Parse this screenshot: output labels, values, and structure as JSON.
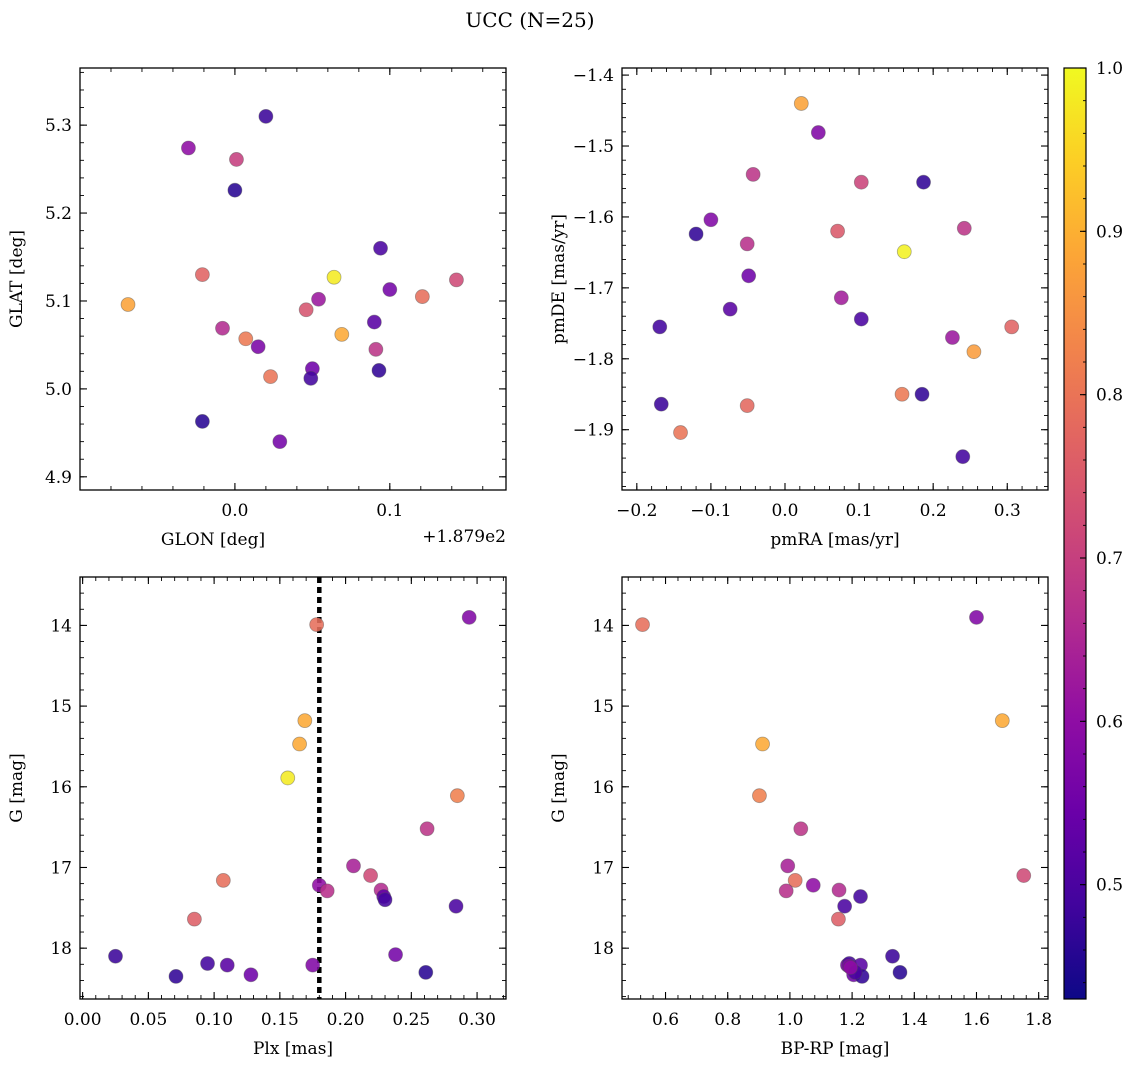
{
  "figure": {
    "title": "UCC (N=25)"
  },
  "chart_data": [
    {
      "type": "scatter",
      "id": "sky",
      "xlabel": "GLON [deg]",
      "ylabel": "GLAT [deg]",
      "offset_text": "+1.879e2",
      "xlim": [
        -0.1,
        0.175
      ],
      "ylim": [
        4.885,
        5.365
      ],
      "xticks": [
        0.0,
        0.1
      ],
      "xtick_labels": [
        "0.0",
        "0.1"
      ],
      "yticks": [
        4.9,
        5.0,
        5.1,
        5.2,
        5.3
      ],
      "ytick_labels": [
        "4.9",
        "5.0",
        "5.1",
        "5.2",
        "5.3"
      ],
      "points": [
        {
          "x": 0.02,
          "y": 5.31,
          "c": 0.48
        },
        {
          "x": -0.03,
          "y": 5.274,
          "c": 0.6
        },
        {
          "x": 0.001,
          "y": 5.261,
          "c": 0.7
        },
        {
          "x": 0.0,
          "y": 5.226,
          "c": 0.46
        },
        {
          "x": 0.094,
          "y": 5.16,
          "c": 0.5
        },
        {
          "x": -0.021,
          "y": 5.13,
          "c": 0.77
        },
        {
          "x": 0.064,
          "y": 5.127,
          "c": 0.98
        },
        {
          "x": 0.143,
          "y": 5.124,
          "c": 0.72
        },
        {
          "x": 0.1,
          "y": 5.113,
          "c": 0.56
        },
        {
          "x": 0.121,
          "y": 5.105,
          "c": 0.79
        },
        {
          "x": 0.054,
          "y": 5.102,
          "c": 0.62
        },
        {
          "x": -0.069,
          "y": 5.096,
          "c": 0.88
        },
        {
          "x": 0.046,
          "y": 5.09,
          "c": 0.74
        },
        {
          "x": 0.09,
          "y": 5.076,
          "c": 0.52
        },
        {
          "x": -0.008,
          "y": 5.069,
          "c": 0.66
        },
        {
          "x": 0.069,
          "y": 5.062,
          "c": 0.89
        },
        {
          "x": 0.007,
          "y": 5.057,
          "c": 0.81
        },
        {
          "x": 0.015,
          "y": 5.048,
          "c": 0.57
        },
        {
          "x": 0.091,
          "y": 5.045,
          "c": 0.68
        },
        {
          "x": 0.05,
          "y": 5.023,
          "c": 0.55
        },
        {
          "x": 0.093,
          "y": 5.021,
          "c": 0.47
        },
        {
          "x": 0.023,
          "y": 5.014,
          "c": 0.8
        },
        {
          "x": 0.049,
          "y": 5.012,
          "c": 0.49
        },
        {
          "x": -0.021,
          "y": 4.963,
          "c": 0.46
        },
        {
          "x": 0.029,
          "y": 4.94,
          "c": 0.56
        }
      ]
    },
    {
      "type": "scatter",
      "id": "pm",
      "xlabel": "pmRA [mas/yr]",
      "ylabel": "pmDE [mas/yr]",
      "xlim": [
        -0.22,
        0.355
      ],
      "ylim": [
        -1.985,
        -1.39
      ],
      "xticks": [
        -0.2,
        -0.1,
        0.0,
        0.1,
        0.2,
        0.3
      ],
      "xtick_labels": [
        "−0.2",
        "−0.1",
        "0.0",
        "0.1",
        "0.2",
        "0.3"
      ],
      "yticks": [
        -1.9,
        -1.8,
        -1.7,
        -1.6,
        -1.5,
        -1.4
      ],
      "ytick_labels": [
        "−1.9",
        "−1.8",
        "−1.7",
        "−1.6",
        "−1.5",
        "−1.4"
      ],
      "points": [
        {
          "x": 0.022,
          "y": -1.44,
          "c": 0.88
        },
        {
          "x": 0.045,
          "y": -1.481,
          "c": 0.58
        },
        {
          "x": -0.043,
          "y": -1.54,
          "c": 0.68
        },
        {
          "x": 0.103,
          "y": -1.551,
          "c": 0.71
        },
        {
          "x": 0.187,
          "y": -1.551,
          "c": 0.47
        },
        {
          "x": -0.1,
          "y": -1.604,
          "c": 0.58
        },
        {
          "x": 0.242,
          "y": -1.616,
          "c": 0.68
        },
        {
          "x": -0.12,
          "y": -1.624,
          "c": 0.47
        },
        {
          "x": 0.071,
          "y": -1.62,
          "c": 0.75
        },
        {
          "x": -0.051,
          "y": -1.638,
          "c": 0.67
        },
        {
          "x": 0.161,
          "y": -1.649,
          "c": 0.99
        },
        {
          "x": -0.049,
          "y": -1.683,
          "c": 0.55
        },
        {
          "x": -0.074,
          "y": -1.73,
          "c": 0.52
        },
        {
          "x": 0.076,
          "y": -1.714,
          "c": 0.63
        },
        {
          "x": 0.103,
          "y": -1.744,
          "c": 0.5
        },
        {
          "x": -0.169,
          "y": -1.755,
          "c": 0.49
        },
        {
          "x": 0.306,
          "y": -1.755,
          "c": 0.77
        },
        {
          "x": 0.226,
          "y": -1.77,
          "c": 0.62
        },
        {
          "x": 0.255,
          "y": -1.79,
          "c": 0.87
        },
        {
          "x": 0.158,
          "y": -1.85,
          "c": 0.81
        },
        {
          "x": 0.185,
          "y": -1.85,
          "c": 0.47
        },
        {
          "x": -0.167,
          "y": -1.864,
          "c": 0.48
        },
        {
          "x": -0.051,
          "y": -1.866,
          "c": 0.78
        },
        {
          "x": -0.141,
          "y": -1.904,
          "c": 0.8
        },
        {
          "x": 0.24,
          "y": -1.938,
          "c": 0.49
        }
      ]
    },
    {
      "type": "scatter",
      "id": "plx",
      "xlabel": "Plx [mas]",
      "ylabel": "G [mag]",
      "xlim": [
        -0.002,
        0.322
      ],
      "ylim": [
        18.63,
        13.4
      ],
      "xticks": [
        0.0,
        0.05,
        0.1,
        0.15,
        0.2,
        0.25,
        0.3
      ],
      "xtick_labels": [
        "0.00",
        "0.05",
        "0.10",
        "0.15",
        "0.20",
        "0.25",
        "0.30"
      ],
      "yticks": [
        14,
        15,
        16,
        17,
        18
      ],
      "ytick_labels": [
        "14",
        "15",
        "16",
        "17",
        "18"
      ],
      "vline": 0.18,
      "points": [
        {
          "x": 0.294,
          "y": 13.9,
          "c": 0.58
        },
        {
          "x": 0.178,
          "y": 13.99,
          "c": 0.79
        },
        {
          "x": 0.169,
          "y": 15.18,
          "c": 0.89
        },
        {
          "x": 0.165,
          "y": 15.47,
          "c": 0.89
        },
        {
          "x": 0.156,
          "y": 15.89,
          "c": 0.98
        },
        {
          "x": 0.285,
          "y": 16.11,
          "c": 0.82
        },
        {
          "x": 0.262,
          "y": 16.52,
          "c": 0.68
        },
        {
          "x": 0.206,
          "y": 16.98,
          "c": 0.64
        },
        {
          "x": 0.219,
          "y": 17.1,
          "c": 0.72
        },
        {
          "x": 0.107,
          "y": 17.16,
          "c": 0.79
        },
        {
          "x": 0.18,
          "y": 17.22,
          "c": 0.6
        },
        {
          "x": 0.227,
          "y": 17.28,
          "c": 0.66
        },
        {
          "x": 0.186,
          "y": 17.29,
          "c": 0.67
        },
        {
          "x": 0.229,
          "y": 17.36,
          "c": 0.53
        },
        {
          "x": 0.23,
          "y": 17.4,
          "c": 0.49
        },
        {
          "x": 0.284,
          "y": 17.48,
          "c": 0.5
        },
        {
          "x": 0.085,
          "y": 17.64,
          "c": 0.76
        },
        {
          "x": 0.025,
          "y": 18.1,
          "c": 0.48
        },
        {
          "x": 0.238,
          "y": 18.08,
          "c": 0.56
        },
        {
          "x": 0.095,
          "y": 18.19,
          "c": 0.49
        },
        {
          "x": 0.11,
          "y": 18.21,
          "c": 0.52
        },
        {
          "x": 0.175,
          "y": 18.21,
          "c": 0.58
        },
        {
          "x": 0.128,
          "y": 18.33,
          "c": 0.55
        },
        {
          "x": 0.261,
          "y": 18.3,
          "c": 0.46
        },
        {
          "x": 0.071,
          "y": 18.35,
          "c": 0.47
        }
      ]
    },
    {
      "type": "scatter",
      "id": "cmd",
      "xlabel": "BP-RP [mag]",
      "ylabel": "G [mag]",
      "xlim": [
        0.46,
        1.83
      ],
      "ylim": [
        18.63,
        13.4
      ],
      "xticks": [
        0.6,
        0.8,
        1.0,
        1.2,
        1.4,
        1.6,
        1.8
      ],
      "xtick_labels": [
        "0.6",
        "0.8",
        "1.0",
        "1.2",
        "1.4",
        "1.6",
        "1.8"
      ],
      "yticks": [
        14,
        15,
        16,
        17,
        18
      ],
      "ytick_labels": [
        "14",
        "15",
        "16",
        "17",
        "18"
      ],
      "points": [
        {
          "x": 0.526,
          "y": 13.99,
          "c": 0.79
        },
        {
          "x": 1.6,
          "y": 13.9,
          "c": 0.58
        },
        {
          "x": 1.683,
          "y": 15.18,
          "c": 0.89
        },
        {
          "x": 0.912,
          "y": 15.47,
          "c": 0.89
        },
        {
          "x": 0.902,
          "y": 16.11,
          "c": 0.82
        },
        {
          "x": 1.035,
          "y": 16.52,
          "c": 0.68
        },
        {
          "x": 0.993,
          "y": 16.98,
          "c": 0.64
        },
        {
          "x": 1.752,
          "y": 17.1,
          "c": 0.72
        },
        {
          "x": 1.017,
          "y": 17.16,
          "c": 0.79
        },
        {
          "x": 1.075,
          "y": 17.22,
          "c": 0.6
        },
        {
          "x": 0.988,
          "y": 17.29,
          "c": 0.67
        },
        {
          "x": 1.158,
          "y": 17.28,
          "c": 0.66
        },
        {
          "x": 1.227,
          "y": 17.36,
          "c": 0.49
        },
        {
          "x": 1.176,
          "y": 17.48,
          "c": 0.5
        },
        {
          "x": 1.156,
          "y": 17.64,
          "c": 0.76
        },
        {
          "x": 1.33,
          "y": 18.1,
          "c": 0.48
        },
        {
          "x": 1.185,
          "y": 18.21,
          "c": 0.56
        },
        {
          "x": 1.191,
          "y": 18.19,
          "c": 0.49
        },
        {
          "x": 1.19,
          "y": 18.22,
          "c": 0.58
        },
        {
          "x": 1.227,
          "y": 18.21,
          "c": 0.52
        },
        {
          "x": 1.205,
          "y": 18.33,
          "c": 0.55
        },
        {
          "x": 1.354,
          "y": 18.3,
          "c": 0.46
        },
        {
          "x": 1.232,
          "y": 18.35,
          "c": 0.47
        },
        {
          "x": 1.21,
          "y": 18.3,
          "c": 0.5
        },
        {
          "x": 1.195,
          "y": 18.24,
          "c": 0.6
        }
      ]
    }
  ],
  "colorbar": {
    "colormap": "plasma",
    "range": [
      0.43,
      1.0
    ],
    "ticks": [
      0.5,
      0.6,
      0.7,
      0.8,
      0.9,
      1.0
    ],
    "tick_labels": [
      "0.5",
      "0.6",
      "0.7",
      "0.8",
      "0.9",
      "1.0"
    ]
  }
}
